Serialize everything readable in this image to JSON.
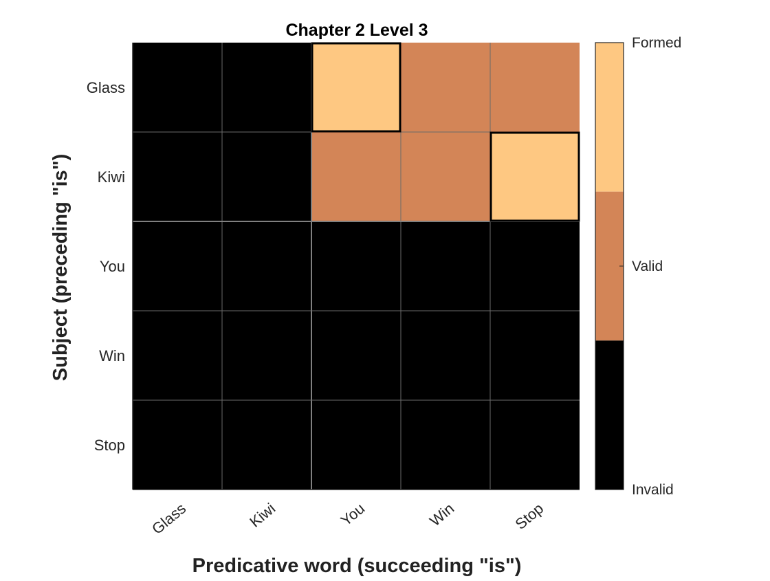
{
  "chart_data": {
    "type": "heatmap",
    "title": "Chapter 2 Level 3",
    "xlabel": "Predicative word (succeeding \"is\")",
    "ylabel": "Subject (preceding \"is\")",
    "x_categories": [
      "Glass",
      "Kiwi",
      "You",
      "Win",
      "Stop"
    ],
    "y_categories": [
      "Glass",
      "Kiwi",
      "You",
      "Win",
      "Stop"
    ],
    "values": [
      [
        0,
        0,
        2,
        1,
        1
      ],
      [
        0,
        0,
        1,
        1,
        2
      ],
      [
        0,
        0,
        0,
        0,
        0
      ],
      [
        0,
        0,
        0,
        0,
        0
      ],
      [
        0,
        0,
        0,
        0,
        0
      ]
    ],
    "levels": [
      {
        "value": 0,
        "label": "Invalid",
        "color": "#000000"
      },
      {
        "value": 1,
        "label": "Valid",
        "color": "#d38557"
      },
      {
        "value": 2,
        "label": "Formed",
        "color": "#fec882"
      }
    ],
    "highlighted_cells": [
      {
        "subject": "Glass",
        "predicate": "You"
      },
      {
        "subject": "Kiwi",
        "predicate": "Stop"
      }
    ],
    "grid": true,
    "legend": "colorbar-right"
  }
}
